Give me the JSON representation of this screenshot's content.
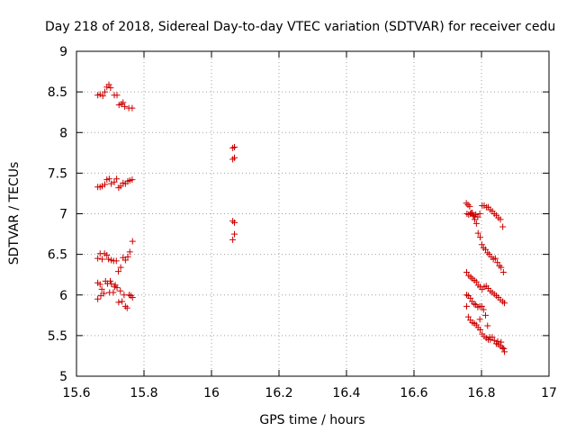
{
  "chart_data": {
    "type": "scatter",
    "title": "Day 218 of 2018, Sidereal Day-to-day VTEC variation (SDTVAR) for receiver cedu",
    "xlabel": "GPS time / hours",
    "ylabel": "SDTVAR / TECUs",
    "xlim": [
      15.6,
      17.0
    ],
    "ylim": [
      5.0,
      9.0
    ],
    "xticks": [
      15.6,
      15.8,
      16.0,
      16.2,
      16.4,
      16.6,
      16.8,
      17.0
    ],
    "xtick_labels": [
      "15.6",
      "15.8",
      "16",
      "16.2",
      "16.4",
      "16.6",
      "16.8",
      "17"
    ],
    "yticks": [
      5.0,
      5.5,
      6.0,
      6.5,
      7.0,
      7.5,
      8.0,
      8.5,
      9.0
    ],
    "ytick_labels": [
      "5",
      "5.5",
      "6",
      "6.5",
      "7",
      "7.5",
      "8",
      "8.5",
      "9"
    ],
    "grid": true,
    "marker": "+",
    "color": "#cc0000",
    "series": [
      {
        "name": "SDTVAR",
        "points": [
          [
            15.663,
            8.46
          ],
          [
            15.67,
            8.47
          ],
          [
            15.678,
            8.45
          ],
          [
            15.684,
            8.5
          ],
          [
            15.69,
            8.56
          ],
          [
            15.696,
            8.59
          ],
          [
            15.701,
            8.55
          ],
          [
            15.712,
            8.46
          ],
          [
            15.72,
            8.46
          ],
          [
            15.726,
            8.34
          ],
          [
            15.733,
            8.35
          ],
          [
            15.738,
            8.37
          ],
          [
            15.743,
            8.32
          ],
          [
            15.755,
            8.3
          ],
          [
            15.765,
            8.3
          ],
          [
            15.663,
            7.33
          ],
          [
            15.67,
            7.33
          ],
          [
            15.676,
            7.34
          ],
          [
            15.684,
            7.36
          ],
          [
            15.69,
            7.42
          ],
          [
            15.697,
            7.43
          ],
          [
            15.703,
            7.37
          ],
          [
            15.712,
            7.39
          ],
          [
            15.719,
            7.43
          ],
          [
            15.725,
            7.32
          ],
          [
            15.731,
            7.34
          ],
          [
            15.738,
            7.38
          ],
          [
            15.745,
            7.37
          ],
          [
            15.752,
            7.4
          ],
          [
            15.758,
            7.41
          ],
          [
            15.765,
            7.42
          ],
          [
            15.663,
            6.45
          ],
          [
            15.67,
            6.51
          ],
          [
            15.676,
            6.44
          ],
          [
            15.683,
            6.51
          ],
          [
            15.69,
            6.49
          ],
          [
            15.695,
            6.44
          ],
          [
            15.703,
            6.43
          ],
          [
            15.71,
            6.42
          ],
          [
            15.718,
            6.42
          ],
          [
            15.724,
            6.29
          ],
          [
            15.731,
            6.34
          ],
          [
            15.738,
            6.46
          ],
          [
            15.745,
            6.43
          ],
          [
            15.752,
            6.47
          ],
          [
            15.758,
            6.53
          ],
          [
            15.766,
            6.66
          ],
          [
            15.663,
            6.15
          ],
          [
            15.67,
            6.13
          ],
          [
            15.675,
            6.07
          ],
          [
            15.681,
            6.02
          ],
          [
            15.686,
            6.17
          ],
          [
            15.692,
            6.14
          ],
          [
            15.698,
            6.03
          ],
          [
            15.703,
            6.14
          ],
          [
            15.709,
            6.03
          ],
          [
            15.715,
            6.12
          ],
          [
            15.72,
            6.09
          ],
          [
            15.725,
            5.91
          ],
          [
            15.73,
            6.05
          ],
          [
            15.735,
            5.92
          ],
          [
            15.741,
            6.0
          ],
          [
            15.745,
            5.86
          ],
          [
            15.75,
            5.84
          ],
          [
            15.756,
            6.0
          ],
          [
            15.761,
            5.99
          ],
          [
            15.766,
            5.97
          ],
          [
            15.663,
            5.95
          ],
          [
            15.672,
            5.99
          ],
          [
            15.7,
            6.17
          ],
          [
            15.713,
            6.1
          ],
          [
            16.063,
            7.81
          ],
          [
            16.068,
            7.82
          ],
          [
            16.063,
            7.67
          ],
          [
            16.068,
            7.69
          ],
          [
            16.063,
            6.91
          ],
          [
            16.068,
            6.89
          ],
          [
            16.063,
            6.68
          ],
          [
            16.068,
            6.75
          ],
          [
            16.755,
            7.13
          ],
          [
            16.76,
            7.11
          ],
          [
            16.765,
            7.09
          ],
          [
            16.77,
            7.01
          ],
          [
            16.775,
            6.98
          ],
          [
            16.78,
            6.93
          ],
          [
            16.785,
            6.88
          ],
          [
            16.79,
            6.76
          ],
          [
            16.796,
            6.71
          ],
          [
            16.801,
            6.62
          ],
          [
            16.806,
            6.58
          ],
          [
            16.812,
            6.56
          ],
          [
            16.818,
            6.52
          ],
          [
            16.823,
            6.5
          ],
          [
            16.829,
            6.47
          ],
          [
            16.835,
            6.44
          ],
          [
            16.841,
            6.45
          ],
          [
            16.847,
            6.4
          ],
          [
            16.853,
            6.36
          ],
          [
            16.858,
            6.34
          ],
          [
            16.865,
            6.28
          ],
          [
            16.757,
            7.0
          ],
          [
            16.762,
            6.99
          ],
          [
            16.767,
            7.0
          ],
          [
            16.773,
            7.01
          ],
          [
            16.778,
            6.97
          ],
          [
            16.783,
            6.99
          ],
          [
            16.789,
            6.96
          ],
          [
            16.795,
            7.0
          ],
          [
            16.802,
            7.1
          ],
          [
            16.808,
            7.1
          ],
          [
            16.815,
            7.08
          ],
          [
            16.82,
            7.08
          ],
          [
            16.826,
            7.05
          ],
          [
            16.832,
            7.03
          ],
          [
            16.838,
            7.0
          ],
          [
            16.844,
            6.98
          ],
          [
            16.85,
            6.95
          ],
          [
            16.856,
            6.93
          ],
          [
            16.863,
            6.84
          ],
          [
            16.756,
            6.28
          ],
          [
            16.762,
            6.24
          ],
          [
            16.768,
            6.22
          ],
          [
            16.773,
            6.2
          ],
          [
            16.779,
            6.18
          ],
          [
            16.785,
            6.16
          ],
          [
            16.79,
            6.12
          ],
          [
            16.796,
            6.1
          ],
          [
            16.802,
            6.07
          ],
          [
            16.808,
            6.1
          ],
          [
            16.814,
            6.11
          ],
          [
            16.82,
            6.08
          ],
          [
            16.826,
            6.05
          ],
          [
            16.832,
            6.03
          ],
          [
            16.838,
            6.01
          ],
          [
            16.844,
            5.99
          ],
          [
            16.85,
            5.97
          ],
          [
            16.856,
            5.94
          ],
          [
            16.863,
            5.92
          ],
          [
            16.868,
            5.9
          ],
          [
            16.756,
            6.0
          ],
          [
            16.761,
            5.99
          ],
          [
            16.767,
            5.96
          ],
          [
            16.772,
            5.92
          ],
          [
            16.778,
            5.89
          ],
          [
            16.783,
            5.88
          ],
          [
            16.789,
            5.85
          ],
          [
            16.795,
            5.86
          ],
          [
            16.801,
            5.86
          ],
          [
            16.806,
            5.82
          ],
          [
            16.812,
            5.75
          ],
          [
            16.818,
            5.62
          ],
          [
            16.756,
            5.86
          ],
          [
            16.761,
            5.73
          ],
          [
            16.767,
            5.69
          ],
          [
            16.773,
            5.66
          ],
          [
            16.779,
            5.65
          ],
          [
            16.785,
            5.63
          ],
          [
            16.79,
            5.6
          ],
          [
            16.796,
            5.57
          ],
          [
            16.802,
            5.52
          ],
          [
            16.808,
            5.49
          ],
          [
            16.814,
            5.47
          ],
          [
            16.82,
            5.45
          ],
          [
            16.826,
            5.45
          ],
          [
            16.832,
            5.48
          ],
          [
            16.838,
            5.44
          ],
          [
            16.844,
            5.4
          ],
          [
            16.85,
            5.39
          ],
          [
            16.856,
            5.37
          ],
          [
            16.862,
            5.35
          ],
          [
            16.868,
            5.3
          ],
          [
            16.795,
            5.7
          ],
          [
            16.824,
            5.48
          ],
          [
            16.848,
            5.43
          ],
          [
            16.858,
            5.42
          ],
          [
            16.866,
            5.34
          ]
        ]
      }
    ]
  }
}
